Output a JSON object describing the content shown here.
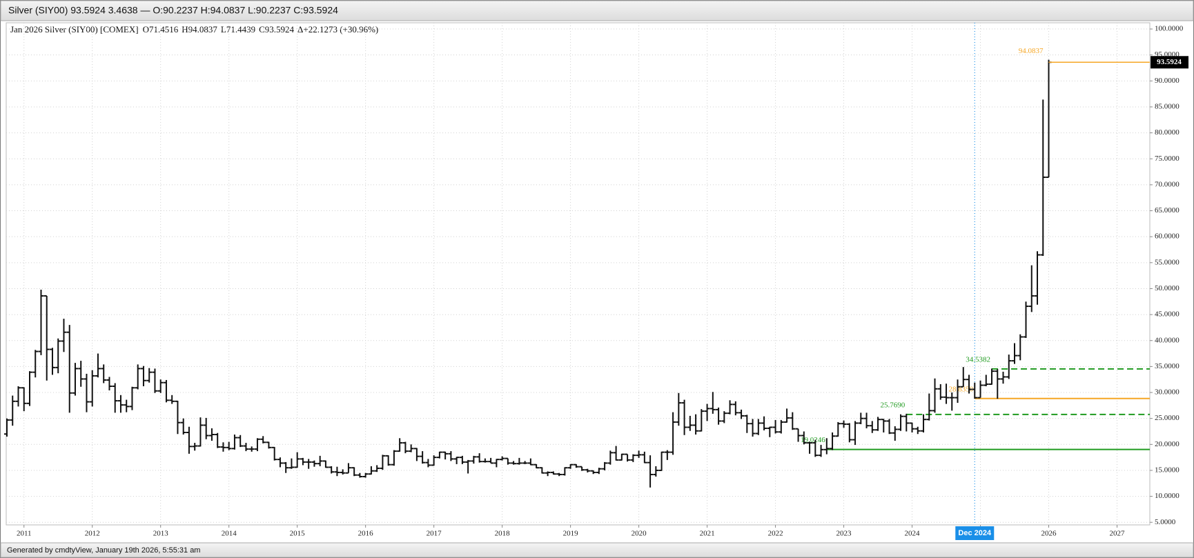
{
  "header": {
    "title": "Silver (SIY00) 93.5924 3.4638 — O:90.2237 H:94.0837 L:90.2237 C:93.5924"
  },
  "footer": {
    "text": "Generated by cmdtyView, January 19th 2026, 5:55:31 am"
  },
  "chart_data": {
    "type": "ohlc",
    "legend_title": "Jan 2026 Silver (SIY00) [COMEX]",
    "legend_values": [
      "O71.4516",
      "H94.0837",
      "L71.4439",
      "C93.5924",
      "Δ+22.1273 (+30.96%)"
    ],
    "color": "#111111",
    "grid": true,
    "x": [
      "2010-10",
      "2010-11",
      "2010-12",
      "2011-01",
      "2011-02",
      "2011-03",
      "2011-04",
      "2011-05",
      "2011-06",
      "2011-07",
      "2011-08",
      "2011-09",
      "2011-10",
      "2011-11",
      "2011-12",
      "2012-01",
      "2012-02",
      "2012-03",
      "2012-04",
      "2012-05",
      "2012-06",
      "2012-07",
      "2012-08",
      "2012-09",
      "2012-10",
      "2012-11",
      "2012-12",
      "2013-01",
      "2013-02",
      "2013-03",
      "2013-04",
      "2013-05",
      "2013-06",
      "2013-07",
      "2013-08",
      "2013-09",
      "2013-10",
      "2013-11",
      "2013-12",
      "2014-01",
      "2014-02",
      "2014-03",
      "2014-04",
      "2014-05",
      "2014-06",
      "2014-07",
      "2014-08",
      "2014-09",
      "2014-10",
      "2014-11",
      "2014-12",
      "2015-01",
      "2015-02",
      "2015-03",
      "2015-04",
      "2015-05",
      "2015-06",
      "2015-07",
      "2015-08",
      "2015-09",
      "2015-10",
      "2015-11",
      "2015-12",
      "2016-01",
      "2016-02",
      "2016-03",
      "2016-04",
      "2016-05",
      "2016-06",
      "2016-07",
      "2016-08",
      "2016-09",
      "2016-10",
      "2016-11",
      "2016-12",
      "2017-01",
      "2017-02",
      "2017-03",
      "2017-04",
      "2017-05",
      "2017-06",
      "2017-07",
      "2017-08",
      "2017-09",
      "2017-10",
      "2017-11",
      "2017-12",
      "2018-01",
      "2018-02",
      "2018-03",
      "2018-04",
      "2018-05",
      "2018-06",
      "2018-07",
      "2018-08",
      "2018-09",
      "2018-10",
      "2018-11",
      "2018-12",
      "2019-01",
      "2019-02",
      "2019-03",
      "2019-04",
      "2019-05",
      "2019-06",
      "2019-07",
      "2019-08",
      "2019-09",
      "2019-10",
      "2019-11",
      "2019-12",
      "2020-01",
      "2020-02",
      "2020-03",
      "2020-04",
      "2020-05",
      "2020-06",
      "2020-07",
      "2020-08",
      "2020-09",
      "2020-10",
      "2020-11",
      "2020-12",
      "2021-01",
      "2021-02",
      "2021-03",
      "2021-04",
      "2021-05",
      "2021-06",
      "2021-07",
      "2021-08",
      "2021-09",
      "2021-10",
      "2021-11",
      "2021-12",
      "2022-01",
      "2022-02",
      "2022-03",
      "2022-04",
      "2022-05",
      "2022-06",
      "2022-07",
      "2022-08",
      "2022-09",
      "2022-10",
      "2022-11",
      "2022-12",
      "2023-01",
      "2023-02",
      "2023-03",
      "2023-04",
      "2023-05",
      "2023-06",
      "2023-07",
      "2023-08",
      "2023-09",
      "2023-10",
      "2023-11",
      "2023-12",
      "2024-01",
      "2024-02",
      "2024-03",
      "2024-04",
      "2024-05",
      "2024-06",
      "2024-07",
      "2024-08",
      "2024-09",
      "2024-10",
      "2024-11",
      "2024-12",
      "2025-01",
      "2025-02",
      "2025-03",
      "2025-04",
      "2025-05",
      "2025-06",
      "2025-07",
      "2025-08",
      "2025-09",
      "2025-10",
      "2025-11",
      "2025-12",
      "2026-01"
    ],
    "open": [
      22.0,
      24.7,
      28.3,
      30.9,
      27.9,
      33.9,
      37.9,
      48.6,
      38.3,
      34.8,
      39.9,
      41.6,
      29.9,
      34.6,
      32.6,
      28.2,
      33.2,
      34.6,
      32.4,
      31.2,
      28.4,
      27.6,
      27.3,
      30.9,
      34.6,
      32.3,
      33.9,
      30.3,
      31.9,
      28.5,
      28.3,
      24.2,
      22.3,
      19.6,
      19.7,
      23.7,
      21.7,
      21.9,
      19.5,
      19.4,
      19.2,
      21.3,
      19.7,
      19.1,
      19.1,
      21.0,
      20.4,
      19.4,
      17.1,
      16.4,
      15.5,
      15.6,
      17.2,
      16.6,
      16.6,
      16.3,
      16.8,
      15.6,
      14.7,
      14.6,
      14.5,
      15.5,
      14.1,
      13.8,
      14.3,
      14.9,
      15.4,
      17.8,
      16.1,
      18.7,
      20.3,
      18.7,
      19.2,
      17.7,
      16.5,
      16.0,
      17.5,
      18.5,
      18.2,
      17.2,
      17.5,
      16.6,
      16.8,
      17.6,
      16.7,
      16.7,
      16.4,
      17.1,
      17.3,
      16.4,
      16.3,
      16.4,
      16.4,
      16.1,
      15.5,
      14.5,
      14.6,
      14.3,
      14.2,
      15.5,
      16.1,
      15.7,
      15.1,
      14.9,
      14.6,
      15.3,
      16.4,
      18.4,
      17.0,
      18.1,
      17.0,
      17.9,
      18.0,
      16.5,
      14.2,
      15.0,
      18.5,
      18.5,
      24.3,
      28.0,
      23.3,
      23.7,
      22.6,
      26.4,
      26.9,
      26.7,
      24.5,
      26.0,
      27.7,
      26.1,
      25.5,
      24.0,
      22.1,
      24.1,
      23.1,
      23.3,
      22.4,
      24.3,
      25.1,
      23.0,
      21.7,
      20.3,
      20.3,
      17.9,
      19.0,
      19.2,
      21.6,
      24.0,
      23.9,
      20.9,
      24.1,
      25.0,
      23.6,
      22.8,
      24.8,
      24.5,
      22.2,
      22.9,
      25.4,
      24.1,
      23.0,
      22.6,
      24.8,
      26.5,
      30.7,
      29.1,
      29.0,
      29.0,
      31.1,
      32.5,
      30.6,
      29.0,
      31.4,
      31.6,
      34.1,
      32.6,
      33.0,
      36.1,
      37.1,
      40.7,
      46.6,
      48.6,
      56.5,
      71.4516
    ],
    "high": [
      25.0,
      29.4,
      31.2,
      31.0,
      34.1,
      38.2,
      49.8,
      48.6,
      38.6,
      40.4,
      44.2,
      43.0,
      35.7,
      36.1,
      33.6,
      34.3,
      37.5,
      35.4,
      33.0,
      31.8,
      29.5,
      28.6,
      31.1,
      35.4,
      35.1,
      34.7,
      34.6,
      32.5,
      32.4,
      29.5,
      28.4,
      25.0,
      23.4,
      20.3,
      25.2,
      25.1,
      23.1,
      22.2,
      20.4,
      20.5,
      21.9,
      21.8,
      20.3,
      19.6,
      21.2,
      21.6,
      20.5,
      19.5,
      17.5,
      16.6,
      17.3,
      18.5,
      17.4,
      17.2,
      16.9,
      17.8,
      16.9,
      15.8,
      15.7,
      15.2,
      16.4,
      15.6,
      14.5,
      14.5,
      15.8,
      16.0,
      18.0,
      17.9,
      18.9,
      21.2,
      20.5,
      20.0,
      19.3,
      18.7,
      17.2,
      17.9,
      18.6,
      18.6,
      18.7,
      17.6,
      17.8,
      17.0,
      17.8,
      18.3,
      17.3,
      17.4,
      17.2,
      17.7,
      17.3,
      16.8,
      17.4,
      16.8,
      17.3,
      16.2,
      15.6,
      14.8,
      14.8,
      14.5,
      15.6,
      16.2,
      16.2,
      15.7,
      15.3,
      15.0,
      15.5,
      16.6,
      18.8,
      19.7,
      18.2,
      18.1,
      18.1,
      18.8,
      18.6,
      17.9,
      15.8,
      18.6,
      18.9,
      26.2,
      29.9,
      28.6,
      25.5,
      25.8,
      26.8,
      27.8,
      30.1,
      27.1,
      26.4,
      28.5,
      28.3,
      26.7,
      25.7,
      24.9,
      24.9,
      25.4,
      23.4,
      24.7,
      24.7,
      26.9,
      26.2,
      23.0,
      22.5,
      20.5,
      20.9,
      19.9,
      21.2,
      22.3,
      24.3,
      24.6,
      24.1,
      24.5,
      26.1,
      26.1,
      24.5,
      25.3,
      24.9,
      24.9,
      23.5,
      25.8,
      25.9,
      24.2,
      23.4,
      25.8,
      29.8,
      32.7,
      31.6,
      31.7,
      30.0,
      32.5,
      34.9,
      33.4,
      31.9,
      32.3,
      33.4,
      34.6,
      34.5,
      34.0,
      37.3,
      39.5,
      41.2,
      47.5,
      54.5,
      57.2,
      86.4,
      94.0837
    ],
    "low": [
      21.5,
      23.6,
      27.3,
      26.4,
      27.4,
      32.9,
      37.2,
      32.3,
      33.4,
      33.7,
      37.8,
      26.1,
      29.4,
      31.1,
      26.2,
      27.3,
      32.9,
      31.8,
      30.4,
      26.1,
      26.1,
      26.2,
      26.6,
      30.6,
      31.2,
      31.9,
      29.9,
      29.9,
      28.1,
      27.8,
      22.0,
      21.9,
      18.2,
      18.8,
      19.6,
      21.0,
      20.7,
      19.3,
      18.6,
      18.9,
      19.0,
      19.5,
      18.7,
      18.6,
      18.7,
      20.2,
      19.2,
      16.9,
      15.6,
      14.5,
      15.3,
      15.5,
      16.0,
      15.3,
      15.7,
      15.8,
      15.5,
      14.4,
      13.9,
      14.2,
      14.5,
      13.9,
      13.6,
      13.6,
      14.2,
      14.7,
      15.1,
      15.9,
      15.9,
      18.6,
      18.3,
      18.5,
      16.8,
      16.3,
      15.6,
      15.9,
      17.3,
      17.1,
      16.8,
      16.2,
      16.2,
      14.4,
      16.3,
      16.5,
      16.5,
      16.4,
      15.6,
      16.9,
      16.1,
      16.1,
      16.1,
      16.2,
      16.0,
      15.4,
      14.4,
      13.9,
      14.2,
      13.9,
      14.0,
      15.3,
      15.5,
      14.9,
      14.6,
      14.3,
      14.3,
      15.0,
      16.1,
      16.9,
      16.9,
      16.7,
      16.6,
      17.4,
      16.4,
      11.7,
      13.8,
      14.9,
      17.0,
      18.0,
      23.6,
      21.8,
      22.6,
      21.9,
      22.5,
      24.5,
      25.9,
      23.8,
      24.1,
      25.8,
      25.6,
      24.9,
      22.2,
      21.5,
      21.8,
      22.7,
      21.4,
      22.1,
      22.1,
      24.2,
      22.8,
      20.5,
      20.0,
      18.2,
      17.6,
      17.6,
      18.1,
      18.9,
      21.5,
      23.2,
      20.4,
      19.9,
      23.9,
      23.1,
      22.2,
      22.6,
      22.3,
      22.0,
      20.7,
      22.6,
      22.5,
      22.3,
      22.0,
      22.3,
      24.6,
      26.1,
      28.6,
      27.8,
      26.5,
      28.0,
      31.1,
      29.8,
      28.8,
      29.0,
      31.2,
      31.5,
      28.8,
      31.7,
      32.6,
      35.5,
      36.2,
      40.5,
      45.5,
      46.9,
      56.3,
      71.4439
    ],
    "close": [
      24.7,
      28.3,
      30.9,
      27.9,
      33.9,
      37.9,
      48.6,
      38.3,
      34.8,
      39.9,
      41.6,
      29.9,
      34.6,
      32.6,
      28.2,
      33.2,
      34.6,
      32.4,
      31.2,
      28.4,
      27.6,
      27.3,
      30.9,
      34.6,
      32.3,
      33.9,
      30.3,
      31.9,
      28.5,
      28.3,
      24.2,
      22.3,
      19.6,
      19.7,
      23.7,
      21.7,
      21.9,
      19.5,
      19.4,
      19.2,
      21.3,
      19.7,
      19.1,
      19.1,
      21.0,
      20.4,
      19.4,
      17.1,
      16.4,
      15.5,
      15.6,
      17.2,
      16.6,
      16.6,
      16.3,
      16.8,
      15.6,
      14.7,
      14.6,
      14.5,
      15.5,
      14.1,
      13.8,
      14.3,
      14.9,
      15.4,
      17.8,
      16.1,
      18.7,
      20.3,
      18.7,
      19.2,
      17.7,
      16.5,
      16.0,
      17.5,
      18.5,
      18.2,
      17.2,
      17.5,
      16.6,
      16.8,
      17.6,
      16.7,
      16.7,
      16.4,
      17.1,
      17.3,
      16.4,
      16.3,
      16.4,
      16.4,
      16.1,
      15.5,
      14.5,
      14.6,
      14.3,
      14.2,
      15.5,
      16.1,
      15.7,
      15.1,
      14.9,
      14.6,
      15.3,
      16.4,
      18.4,
      17.0,
      18.1,
      17.0,
      17.9,
      18.0,
      16.5,
      14.2,
      15.0,
      18.5,
      18.5,
      24.3,
      28.0,
      23.3,
      23.7,
      22.6,
      26.4,
      26.9,
      26.7,
      24.5,
      26.0,
      27.7,
      26.1,
      25.5,
      24.0,
      22.1,
      24.1,
      23.1,
      23.3,
      22.4,
      24.3,
      25.1,
      23.0,
      21.7,
      20.3,
      20.3,
      17.9,
      19.0,
      19.2,
      21.6,
      24.0,
      23.9,
      20.9,
      24.1,
      25.0,
      23.6,
      22.8,
      24.8,
      24.5,
      22.2,
      22.9,
      25.4,
      24.1,
      23.0,
      22.6,
      24.8,
      26.5,
      30.7,
      29.1,
      29.0,
      29.0,
      31.1,
      32.5,
      30.6,
      29.0,
      31.4,
      31.6,
      34.1,
      32.6,
      33.0,
      36.1,
      37.1,
      40.7,
      46.6,
      48.6,
      56.5,
      71.45,
      93.5924
    ],
    "xlim": [
      2010.74,
      2027.48
    ],
    "xticks": [
      2011,
      2012,
      2013,
      2014,
      2015,
      2016,
      2017,
      2018,
      2019,
      2020,
      2021,
      2022,
      2023,
      2024,
      2025,
      2026,
      2027
    ],
    "ylim": [
      4.5,
      101.2
    ],
    "yticks": [
      {
        "value": 5,
        "label": "5.0000"
      },
      {
        "value": 10,
        "label": "10.0000"
      },
      {
        "value": 15,
        "label": "15.0000"
      },
      {
        "value": 20,
        "label": "20.0000"
      },
      {
        "value": 25,
        "label": "25.0000"
      },
      {
        "value": 30,
        "label": "30.0000"
      },
      {
        "value": 35,
        "label": "35.0000"
      },
      {
        "value": 40,
        "label": "40.0000"
      },
      {
        "value": 45,
        "label": "45.0000"
      },
      {
        "value": 50,
        "label": "50.0000"
      },
      {
        "value": 55,
        "label": "55.0000"
      },
      {
        "value": 60,
        "label": "60.0000"
      },
      {
        "value": 65,
        "label": "65.0000"
      },
      {
        "value": 70,
        "label": "70.0000"
      },
      {
        "value": 75,
        "label": "75.0000"
      },
      {
        "value": 80,
        "label": "80.0000"
      },
      {
        "value": 85,
        "label": "85.0000"
      },
      {
        "value": 90,
        "label": "90.0000"
      },
      {
        "value": 95,
        "label": "95.0000"
      },
      {
        "value": 100,
        "label": "100.0000"
      }
    ],
    "levels": [
      {
        "value": 19.0246,
        "from": "2022-10",
        "color": "#1f9a1f",
        "style": "solid"
      },
      {
        "value": 25.769,
        "label": "25.7690",
        "from": "2023-12",
        "color": "#1f9a1f",
        "style": "dashed"
      },
      {
        "value": 34.5382,
        "from": "2025-03",
        "color": "#1f9a1f",
        "style": "dashed"
      },
      {
        "value": 28.835,
        "label": "28.8350",
        "from": "2024-12",
        "color": "#f5a623",
        "style": "solid"
      }
    ],
    "high_label": 94.0837,
    "high_label_color": "#f5a623",
    "last": 93.5924,
    "last_from": "2026-01",
    "last_color": "#f5a623",
    "cursor": {
      "x": "2024-12",
      "label": "Dec 2024",
      "color": "#1a8fe8"
    }
  }
}
